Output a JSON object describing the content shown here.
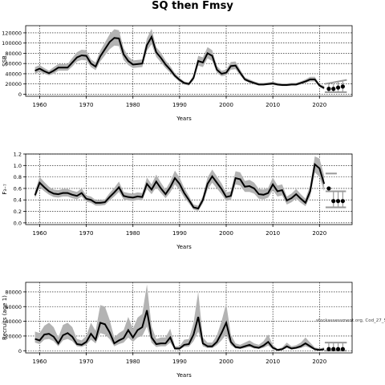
{
  "figure": {
    "title": "SQ then Fmsy",
    "watermark": "stockassessment.org, Cod_27_5b"
  },
  "chart_data": [
    {
      "type": "line",
      "xlabel": "Years",
      "ylabel": "SSB",
      "xlim": [
        1957,
        2027
      ],
      "ylim": [
        -4000,
        134000
      ],
      "xticks": [
        1960,
        1970,
        1980,
        1990,
        2000,
        2010,
        2020
      ],
      "yticks": [
        0,
        20000,
        40000,
        60000,
        80000,
        100000,
        120000
      ],
      "ytick_labels": [
        "0",
        "20000",
        "40000",
        "60000",
        "80000",
        "100000",
        "120000"
      ],
      "grid": true,
      "x": [
        1959,
        1960,
        1961,
        1962,
        1963,
        1964,
        1965,
        1966,
        1967,
        1968,
        1969,
        1970,
        1971,
        1972,
        1973,
        1974,
        1975,
        1976,
        1977,
        1978,
        1979,
        1980,
        1981,
        1982,
        1983,
        1984,
        1985,
        1986,
        1987,
        1988,
        1989,
        1990,
        1991,
        1992,
        1993,
        1994,
        1995,
        1996,
        1997,
        1998,
        1999,
        2000,
        2001,
        2002,
        2003,
        2004,
        2005,
        2006,
        2007,
        2008,
        2009,
        2010,
        2011,
        2012,
        2013,
        2014,
        2015,
        2016,
        2017,
        2018,
        2019,
        2020,
        2021
      ],
      "estimate": [
        46000,
        50000,
        45000,
        41000,
        46000,
        52000,
        52000,
        52000,
        62000,
        72000,
        76000,
        75000,
        60000,
        54000,
        74000,
        88000,
        102000,
        110000,
        109000,
        78000,
        65000,
        58000,
        59000,
        60000,
        96000,
        112000,
        82000,
        71000,
        58000,
        48000,
        36000,
        28000,
        22000,
        20000,
        32000,
        65000,
        62000,
        80000,
        75000,
        48000,
        40000,
        42000,
        55000,
        56000,
        42000,
        29000,
        25000,
        22000,
        19000,
        19000,
        20000,
        21000,
        19000,
        18000,
        18000,
        19000,
        19000,
        22000,
        25000,
        29000,
        29000,
        17000,
        12000
      ],
      "lower": [
        40000,
        44000,
        40000,
        37000,
        40000,
        46000,
        46000,
        46000,
        54000,
        64000,
        67000,
        66000,
        53000,
        47000,
        64000,
        76000,
        88000,
        95000,
        94000,
        67000,
        57000,
        51000,
        52000,
        53000,
        85000,
        98000,
        73000,
        62000,
        51000,
        42000,
        32000,
        24000,
        19000,
        17000,
        27000,
        56000,
        53000,
        70000,
        65000,
        42000,
        35000,
        37000,
        48000,
        49000,
        37000,
        26000,
        22000,
        19000,
        17000,
        17000,
        18000,
        18000,
        17000,
        16000,
        16000,
        17000,
        17000,
        19000,
        22000,
        25000,
        25000,
        14000,
        9000
      ],
      "upper": [
        53000,
        57000,
        51000,
        46000,
        53000,
        59000,
        59000,
        59000,
        71000,
        82000,
        87000,
        86000,
        68000,
        62000,
        85000,
        101000,
        117000,
        127000,
        125000,
        90000,
        74000,
        66000,
        67000,
        68000,
        109000,
        128000,
        92000,
        81000,
        66000,
        55000,
        41000,
        32000,
        25000,
        23000,
        37000,
        75000,
        72000,
        92000,
        86000,
        55000,
        46000,
        48000,
        63000,
        64000,
        48000,
        33000,
        29000,
        25000,
        22000,
        22000,
        23000,
        24000,
        22000,
        21000,
        21000,
        22000,
        22000,
        25000,
        29000,
        34000,
        34000,
        20000,
        16000
      ],
      "forecast": {
        "x": [
          2022,
          2023,
          2024,
          2025
        ],
        "values": [
          10500,
          10500,
          13000,
          15000
        ],
        "lower": [
          4000,
          4000,
          4000,
          4000
        ],
        "upper": [
          20000,
          20000,
          26000,
          28000
        ]
      }
    },
    {
      "type": "line",
      "xlabel": "Years",
      "ylabel": "F₃₋₇",
      "xlim": [
        1957,
        2027
      ],
      "ylim": [
        -0.03,
        1.2
      ],
      "xticks": [
        1960,
        1970,
        1980,
        1990,
        2000,
        2010,
        2020
      ],
      "yticks": [
        0.0,
        0.2,
        0.4,
        0.6,
        0.8,
        1.0,
        1.2
      ],
      "ytick_labels": [
        "0.0",
        "0.2",
        "0.4",
        "0.6",
        "0.8",
        "1.0",
        "1.2"
      ],
      "grid": true,
      "x": [
        1959,
        1960,
        1961,
        1962,
        1963,
        1964,
        1965,
        1966,
        1967,
        1968,
        1969,
        1970,
        1971,
        1972,
        1973,
        1974,
        1975,
        1976,
        1977,
        1978,
        1979,
        1980,
        1981,
        1982,
        1983,
        1984,
        1985,
        1986,
        1987,
        1988,
        1989,
        1990,
        1991,
        1992,
        1993,
        1994,
        1995,
        1996,
        1997,
        1998,
        1999,
        2000,
        2001,
        2002,
        2003,
        2004,
        2005,
        2006,
        2007,
        2008,
        2009,
        2010,
        2011,
        2012,
        2013,
        2014,
        2015,
        2016,
        2017,
        2018,
        2019,
        2020,
        2021
      ],
      "estimate": [
        0.48,
        0.7,
        0.62,
        0.55,
        0.51,
        0.5,
        0.52,
        0.52,
        0.49,
        0.47,
        0.52,
        0.42,
        0.4,
        0.35,
        0.35,
        0.36,
        0.45,
        0.53,
        0.62,
        0.47,
        0.45,
        0.44,
        0.46,
        0.45,
        0.68,
        0.58,
        0.72,
        0.6,
        0.5,
        0.62,
        0.78,
        0.68,
        0.52,
        0.4,
        0.27,
        0.25,
        0.4,
        0.68,
        0.81,
        0.7,
        0.59,
        0.45,
        0.47,
        0.78,
        0.76,
        0.63,
        0.64,
        0.6,
        0.5,
        0.49,
        0.52,
        0.67,
        0.55,
        0.57,
        0.39,
        0.43,
        0.5,
        0.42,
        0.35,
        0.55,
        1.02,
        0.95,
        0.68
      ],
      "lower": [
        0.43,
        0.62,
        0.55,
        0.49,
        0.45,
        0.44,
        0.46,
        0.46,
        0.43,
        0.41,
        0.46,
        0.37,
        0.35,
        0.3,
        0.3,
        0.31,
        0.39,
        0.46,
        0.54,
        0.41,
        0.39,
        0.38,
        0.4,
        0.39,
        0.59,
        0.5,
        0.62,
        0.52,
        0.43,
        0.53,
        0.67,
        0.58,
        0.44,
        0.34,
        0.23,
        0.21,
        0.34,
        0.58,
        0.7,
        0.6,
        0.5,
        0.38,
        0.4,
        0.67,
        0.65,
        0.54,
        0.54,
        0.51,
        0.42,
        0.41,
        0.44,
        0.57,
        0.46,
        0.48,
        0.32,
        0.36,
        0.42,
        0.35,
        0.29,
        0.46,
        0.88,
        0.8,
        0.55
      ],
      "upper": [
        0.55,
        0.8,
        0.71,
        0.63,
        0.58,
        0.57,
        0.59,
        0.59,
        0.56,
        0.54,
        0.6,
        0.48,
        0.46,
        0.4,
        0.4,
        0.41,
        0.52,
        0.61,
        0.72,
        0.54,
        0.52,
        0.51,
        0.53,
        0.52,
        0.79,
        0.67,
        0.84,
        0.7,
        0.58,
        0.72,
        0.91,
        0.79,
        0.61,
        0.47,
        0.32,
        0.3,
        0.47,
        0.79,
        0.93,
        0.81,
        0.69,
        0.53,
        0.55,
        0.9,
        0.88,
        0.73,
        0.75,
        0.7,
        0.59,
        0.58,
        0.61,
        0.79,
        0.65,
        0.67,
        0.46,
        0.51,
        0.59,
        0.5,
        0.42,
        0.65,
        1.16,
        1.12,
        0.83
      ],
      "forecast": {
        "x": [
          2022,
          2023,
          2024,
          2025
        ],
        "values": [
          0.6,
          0.38,
          0.38,
          0.38
        ],
        "lower": [
          0.6,
          0.27,
          0.27,
          0.27
        ],
        "upper": [
          0.6,
          0.55,
          0.55,
          0.55
        ],
        "cap_x": [
          2022,
          2025
        ],
        "bar_lower": 0.27,
        "bar_upper": 0.55,
        "extra_cap": 0.86
      }
    },
    {
      "type": "line",
      "xlabel": "Years",
      "ylabel": "Recruits (age 1)",
      "xlim": [
        1957,
        2027
      ],
      "ylim": [
        -3000,
        93000
      ],
      "xticks": [
        1960,
        1970,
        1980,
        1990,
        2000,
        2010,
        2020
      ],
      "yticks": [
        0,
        20000,
        40000,
        60000,
        80000
      ],
      "ytick_labels": [
        "0",
        "20000",
        "40000",
        "60000",
        "80000"
      ],
      "grid": true,
      "x": [
        1959,
        1960,
        1961,
        1962,
        1963,
        1964,
        1965,
        1966,
        1967,
        1968,
        1969,
        1970,
        1971,
        1972,
        1973,
        1974,
        1975,
        1976,
        1977,
        1978,
        1979,
        1980,
        1981,
        1982,
        1983,
        1984,
        1985,
        1986,
        1987,
        1988,
        1989,
        1990,
        1991,
        1992,
        1993,
        1994,
        1995,
        1996,
        1997,
        1998,
        1999,
        2000,
        2001,
        2002,
        2003,
        2004,
        2005,
        2006,
        2007,
        2008,
        2009,
        2010,
        2011,
        2012,
        2013,
        2014,
        2015,
        2016,
        2017,
        2018,
        2019,
        2020,
        2021
      ],
      "estimate": [
        16000,
        14000,
        22000,
        23000,
        19000,
        10000,
        21000,
        24000,
        19000,
        9000,
        8000,
        12000,
        23000,
        15000,
        38000,
        36000,
        25000,
        10000,
        14000,
        17000,
        28000,
        18000,
        28000,
        32000,
        55000,
        18000,
        9000,
        10000,
        10000,
        18000,
        3000,
        3000,
        8000,
        9000,
        22000,
        46000,
        10000,
        6000,
        6000,
        12000,
        24000,
        38000,
        12000,
        5000,
        4000,
        6000,
        8000,
        5000,
        4000,
        7000,
        12000,
        4000,
        1000,
        2000,
        6000,
        3000,
        4000,
        6000,
        10000,
        6000,
        2000,
        1000,
        2000
      ],
      "lower": [
        11000,
        9000,
        15000,
        16000,
        13000,
        6000,
        14000,
        16000,
        13000,
        6000,
        5000,
        8000,
        15000,
        10000,
        24000,
        22000,
        16000,
        6000,
        9000,
        11000,
        18000,
        12000,
        18000,
        20000,
        33000,
        11000,
        5000,
        6000,
        6000,
        11000,
        1500,
        1500,
        5000,
        5500,
        13000,
        26000,
        6000,
        3500,
        3500,
        7500,
        14000,
        22000,
        7500,
        3000,
        2500,
        3500,
        5000,
        3000,
        2500,
        4000,
        7000,
        2000,
        300,
        800,
        3500,
        1500,
        2500,
        3500,
        6000,
        3500,
        800,
        300,
        800
      ],
      "upper": [
        26000,
        24000,
        34000,
        38000,
        32000,
        18000,
        35000,
        38000,
        32000,
        16000,
        14000,
        20000,
        38000,
        27000,
        62000,
        60000,
        42000,
        18000,
        24000,
        28000,
        46000,
        30000,
        45000,
        50000,
        90000,
        33000,
        16000,
        18000,
        18000,
        30000,
        6000,
        6000,
        15000,
        16000,
        38000,
        80000,
        18000,
        11000,
        11000,
        21000,
        40000,
        64000,
        22000,
        10000,
        8000,
        11000,
        14000,
        10000,
        8000,
        13000,
        22000,
        8000,
        2500,
        4500,
        11000,
        6000,
        7500,
        11000,
        18000,
        11000,
        4500,
        3000,
        4500
      ],
      "forecast": {
        "x": [
          2022,
          2023,
          2024,
          2025
        ],
        "values": [
          2200,
          2200,
          2200,
          2200
        ],
        "lower": [
          0,
          0,
          0,
          0
        ],
        "upper": [
          11000,
          11000,
          11000,
          11000
        ]
      }
    }
  ]
}
